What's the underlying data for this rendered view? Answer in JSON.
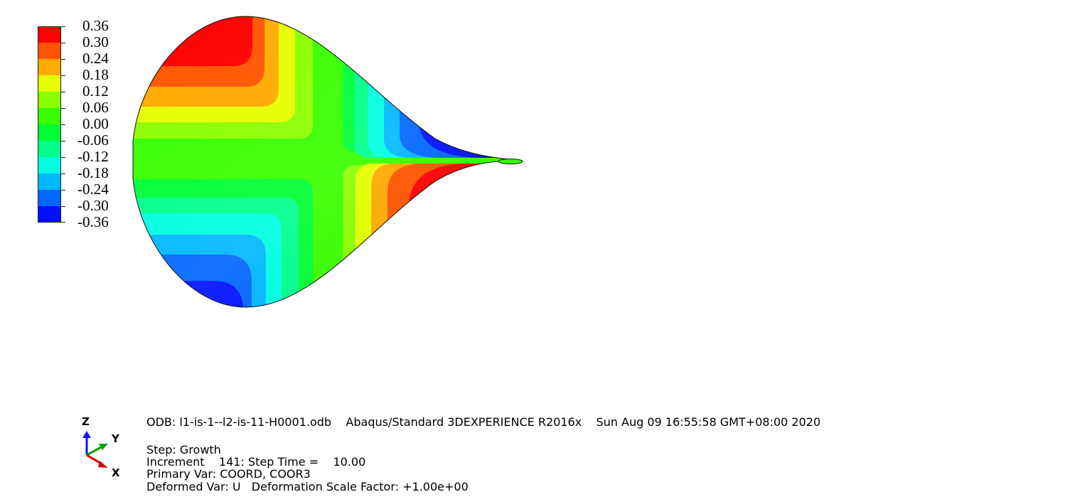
{
  "legend": {
    "colors": [
      "#ff0000",
      "#ff5500",
      "#ffaa00",
      "#e6ff00",
      "#8cff00",
      "#38ff00",
      "#00ff36",
      "#00ff8c",
      "#00ffe2",
      "#00b8ff",
      "#0066ff",
      "#0010ff"
    ],
    "labels": [
      "0.36",
      "0.30",
      "0.24",
      "0.18",
      "0.12",
      "0.06",
      "0.00",
      "-0.06",
      "-0.12",
      "-0.18",
      "-0.24",
      "-0.30",
      "-0.36"
    ]
  },
  "contour_colors": {
    "red": "#ff0000",
    "red_orange": "#ff5500",
    "orange": "#ffaa00",
    "yellow": "#e6ff00",
    "yellow_green": "#8cff00",
    "green": "#38ff00",
    "green_mid": "#00ff36",
    "spring": "#00ff8c",
    "cyan": "#00ffe2",
    "sky": "#00b8ff",
    "blue_mid": "#0066ff",
    "blue": "#0010ff"
  },
  "triad": {
    "z": "Z",
    "y": "Y",
    "x": "X"
  },
  "info": {
    "odb_line": "ODB: l1-is-1--l2-is-11-H0001.odb    Abaqus/Standard 3DEXPERIENCE R2016x    Sun Aug 09 16:55:58 GMT+08:00 2020",
    "step": "Step: Growth",
    "increment": "Increment    141: Step Time =    10.00",
    "primary_var": "Primary Var: COORD, COOR3",
    "deformed_var": "Deformed Var: U   Deformation Scale Factor: +1.00e+00"
  }
}
